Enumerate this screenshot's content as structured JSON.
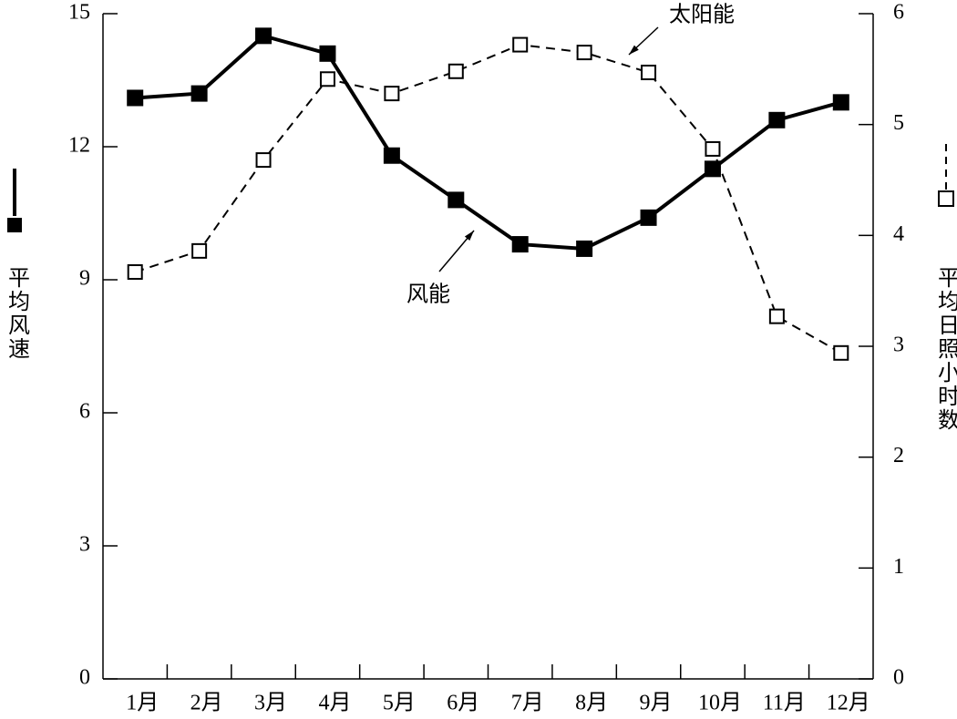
{
  "chart_data": {
    "type": "line",
    "categories": [
      "1月",
      "2月",
      "3月",
      "4月",
      "5月",
      "6月",
      "7月",
      "8月",
      "9月",
      "10月",
      "11月",
      "12月"
    ],
    "ylabel": "平均风速",
    "y2label": "平均日照小时数",
    "ylim": [
      0,
      15
    ],
    "yticks": [
      0,
      3,
      6,
      9,
      12,
      15
    ],
    "y2lim": [
      0,
      6
    ],
    "y2ticks": [
      0,
      1,
      2,
      3,
      4,
      5,
      6
    ],
    "series": [
      {
        "name": "风能",
        "color": "#000000",
        "linestyle": "solid",
        "marker": "filled",
        "values": [
          13.1,
          13.2,
          14.5,
          14.1,
          11.8,
          10.8,
          9.8,
          9.7,
          10.4,
          11.5,
          12.6,
          13.0
        ]
      },
      {
        "name": "太阳能",
        "color": "#000000",
        "linestyle": "dashed",
        "marker": "open",
        "axis": "y2",
        "values": [
          3.67,
          3.86,
          4.68,
          5.41,
          5.28,
          5.48,
          5.72,
          5.65,
          5.47,
          4.78,
          3.27,
          2.94
        ]
      }
    ]
  }
}
